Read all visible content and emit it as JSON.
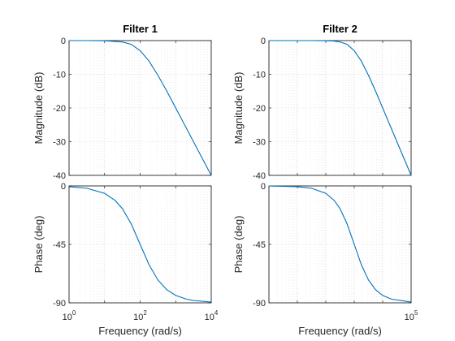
{
  "chart_data": [
    {
      "type": "line",
      "title": "Filter 1",
      "xscale": "log",
      "xlim": [
        1,
        10000
      ],
      "x_ticks": [
        {
          "base": "10",
          "exp": "0"
        },
        {
          "base": "10",
          "exp": "2"
        },
        {
          "base": "10",
          "exp": "4"
        }
      ],
      "xlabel": "Frequency  (rad/s)",
      "grid": "on",
      "magnitude": {
        "ylabel": "Magnitude (dB)",
        "ylim": [
          -40,
          0
        ],
        "y_ticks": [
          "0",
          "-10",
          "-20",
          "-30",
          "-40"
        ],
        "series": [
          {
            "x": [
              1,
              3.16,
              10,
              31.6,
              56.2,
              100,
              178,
              316,
              562,
              1000,
              1780,
              3160,
              5620,
              10000
            ],
            "y": [
              0,
              0,
              -0.04,
              -0.4,
              -1.1,
              -3.0,
              -6.1,
              -10.3,
              -15.0,
              -20.0,
              -25.0,
              -30.0,
              -35.0,
              -40.0
            ]
          }
        ]
      },
      "phase": {
        "ylabel": "Phase (deg)",
        "ylim": [
          -90,
          0
        ],
        "y_ticks": [
          "0",
          "-45",
          "-90"
        ],
        "series": [
          {
            "x": [
              1,
              3.16,
              10,
              20,
              31.6,
              56.2,
              100,
              178,
              316,
              562,
              1000,
              2000,
              3160,
              10000
            ],
            "y": [
              -0.6,
              -1.8,
              -5.7,
              -11.3,
              -17.5,
              -29.3,
              -45,
              -60.7,
              -72.4,
              -79.9,
              -84.3,
              -87.1,
              -88.2,
              -89.4
            ]
          }
        ]
      }
    },
    {
      "type": "line",
      "title": "Filter 2",
      "xscale": "log",
      "xlim": [
        1,
        100000
      ],
      "x_ticks": [
        {
          "base": "10",
          "exp": "5"
        }
      ],
      "xlabel": "Frequency  (rad/s)",
      "grid": "on",
      "magnitude": {
        "ylabel": "Magnitude (dB)",
        "ylim": [
          -40,
          0
        ],
        "y_ticks": [
          "0",
          "-10",
          "-20",
          "-30",
          "-40"
        ],
        "series": [
          {
            "x": [
              1,
              10,
              31.6,
              100,
              178,
              316,
              562,
              1000,
              1780,
              3160,
              5620,
              10000,
              31600,
              100000
            ],
            "y": [
              0,
              0,
              0,
              -0.04,
              -0.1,
              -0.4,
              -1.1,
              -3.0,
              -6.1,
              -10.3,
              -15.0,
              -20.0,
              -30.0,
              -40.0
            ]
          }
        ]
      },
      "phase": {
        "ylabel": "Phase (deg)",
        "ylim": [
          -90,
          0
        ],
        "y_ticks": [
          "0",
          "-45",
          "-90"
        ],
        "series": [
          {
            "x": [
              1,
              10,
              31.6,
              100,
              200,
              316,
              562,
              1000,
              1780,
              3160,
              5620,
              10000,
              20000,
              100000
            ],
            "y": [
              -0.06,
              -0.6,
              -1.8,
              -5.7,
              -11.3,
              -17.5,
              -29.3,
              -45,
              -60.7,
              -72.4,
              -79.9,
              -84.3,
              -87.1,
              -89.4
            ]
          }
        ]
      }
    }
  ],
  "colors": {
    "line": "#0072bd",
    "axis": "#262626",
    "grid": "#d0d0d0"
  }
}
